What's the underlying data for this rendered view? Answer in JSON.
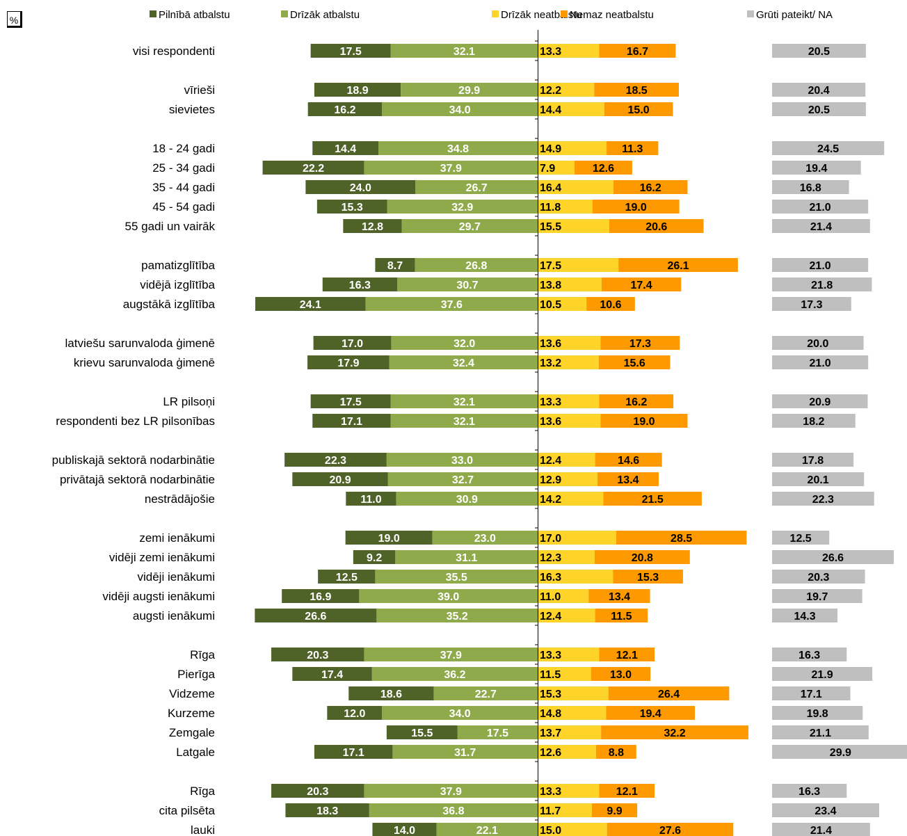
{
  "unit_label": "%",
  "chart_data": {
    "type": "bar",
    "orientation": "horizontal",
    "stacked": "diverging",
    "series": [
      {
        "name": "Pilnībā atbalstu",
        "color": "#4f6228",
        "label_color": "#ffffff",
        "side": "left"
      },
      {
        "name": "Drīzāk atbalstu",
        "color": "#8faa4b",
        "label_color": "#ffffff",
        "side": "left"
      },
      {
        "name": "Drīzāk neatbalstu",
        "color": "#ffd42a",
        "label_color": "#000000",
        "side": "right"
      },
      {
        "name": "Nemaz neatbalstu",
        "color": "#ff9900",
        "label_color": "#000000",
        "side": "right"
      },
      {
        "name": "Grūti pateikt/ NA",
        "color": "#bfbfbf",
        "label_color": "#000000",
        "side": "separate"
      }
    ],
    "rows": [
      {
        "label": "visi respondenti",
        "values": [
          "17.5",
          "32.1",
          "13.3",
          "16.7",
          "20.5"
        ]
      },
      null,
      {
        "label": "vīrieši",
        "values": [
          "18.9",
          "29.9",
          "12.2",
          "18.5",
          "20.4"
        ]
      },
      {
        "label": "sievietes",
        "values": [
          "16.2",
          "34.0",
          "14.4",
          "15.0",
          "20.5"
        ]
      },
      null,
      {
        "label": "18 - 24 gadi",
        "values": [
          "14.4",
          "34.8",
          "14.9",
          "11.3",
          "24.5"
        ]
      },
      {
        "label": "25 - 34 gadi",
        "values": [
          "22.2",
          "37.9",
          "7.9",
          "12.6",
          "19.4"
        ]
      },
      {
        "label": "35 - 44 gadi",
        "values": [
          "24.0",
          "26.7",
          "16.4",
          "16.2",
          "16.8"
        ]
      },
      {
        "label": "45 - 54 gadi",
        "values": [
          "15.3",
          "32.9",
          "11.8",
          "19.0",
          "21.0"
        ]
      },
      {
        "label": "55 gadi un vairāk",
        "values": [
          "12.8",
          "29.7",
          "15.5",
          "20.6",
          "21.4"
        ]
      },
      null,
      {
        "label": "pamatizglītība",
        "values": [
          "8.7",
          "26.8",
          "17.5",
          "26.1",
          "21.0"
        ]
      },
      {
        "label": "vidējā izglītība",
        "values": [
          "16.3",
          "30.7",
          "13.8",
          "17.4",
          "21.8"
        ]
      },
      {
        "label": "augstākā izglītība",
        "values": [
          "24.1",
          "37.6",
          "10.5",
          "10.6",
          "17.3"
        ]
      },
      null,
      {
        "label": "latviešu sarunvaloda ģimenē",
        "values": [
          "17.0",
          "32.0",
          "13.6",
          "17.3",
          "20.0"
        ]
      },
      {
        "label": "krievu sarunvaloda ģimenē",
        "values": [
          "17.9",
          "32.4",
          "13.2",
          "15.6",
          "21.0"
        ]
      },
      null,
      {
        "label": "LR pilsoņi",
        "values": [
          "17.5",
          "32.1",
          "13.3",
          "16.2",
          "20.9"
        ]
      },
      {
        "label": "respondenti bez LR pilsonības",
        "values": [
          "17.1",
          "32.1",
          "13.6",
          "19.0",
          "18.2"
        ]
      },
      null,
      {
        "label": "publiskajā sektorā nodarbinātie",
        "values": [
          "22.3",
          "33.0",
          "12.4",
          "14.6",
          "17.8"
        ]
      },
      {
        "label": "privātajā sektorā nodarbinātie",
        "values": [
          "20.9",
          "32.7",
          "12.9",
          "13.4",
          "20.1"
        ]
      },
      {
        "label": "nestrādājošie",
        "values": [
          "11.0",
          "30.9",
          "14.2",
          "21.5",
          "22.3"
        ]
      },
      null,
      {
        "label": "zemi ienākumi",
        "values": [
          "19.0",
          "23.0",
          "17.0",
          "28.5",
          "12.5"
        ]
      },
      {
        "label": "vidēji zemi ienākumi",
        "values": [
          "9.2",
          "31.1",
          "12.3",
          "20.8",
          "26.6"
        ]
      },
      {
        "label": "vidēji ienākumi",
        "values": [
          "12.5",
          "35.5",
          "16.3",
          "15.3",
          "20.3"
        ]
      },
      {
        "label": "vidēji augsti ienākumi",
        "values": [
          "16.9",
          "39.0",
          "11.0",
          "13.4",
          "19.7"
        ]
      },
      {
        "label": "augsti ienākumi",
        "values": [
          "26.6",
          "35.2",
          "12.4",
          "11.5",
          "14.3"
        ]
      },
      null,
      {
        "label": "Rīga",
        "values": [
          "20.3",
          "37.9",
          "13.3",
          "12.1",
          "16.3"
        ]
      },
      {
        "label": "Pierīga",
        "values": [
          "17.4",
          "36.2",
          "11.5",
          "13.0",
          "21.9"
        ]
      },
      {
        "label": "Vidzeme",
        "values": [
          "18.6",
          "22.7",
          "15.3",
          "26.4",
          "17.1"
        ]
      },
      {
        "label": "Kurzeme",
        "values": [
          "12.0",
          "34.0",
          "14.8",
          "19.4",
          "19.8"
        ]
      },
      {
        "label": "Zemgale",
        "values": [
          "15.5",
          "17.5",
          "13.7",
          "32.2",
          "21.1"
        ]
      },
      {
        "label": "Latgale",
        "values": [
          "17.1",
          "31.7",
          "12.6",
          "8.8",
          "29.9"
        ]
      },
      null,
      {
        "label": "Rīga",
        "values": [
          "20.3",
          "37.9",
          "13.3",
          "12.1",
          "16.3"
        ]
      },
      {
        "label": "cita pilsēta",
        "values": [
          "18.3",
          "36.8",
          "11.7",
          "9.9",
          "23.4"
        ]
      },
      {
        "label": "lauki",
        "values": [
          "14.0",
          "22.1",
          "15.0",
          "27.6",
          "21.4"
        ]
      }
    ]
  }
}
